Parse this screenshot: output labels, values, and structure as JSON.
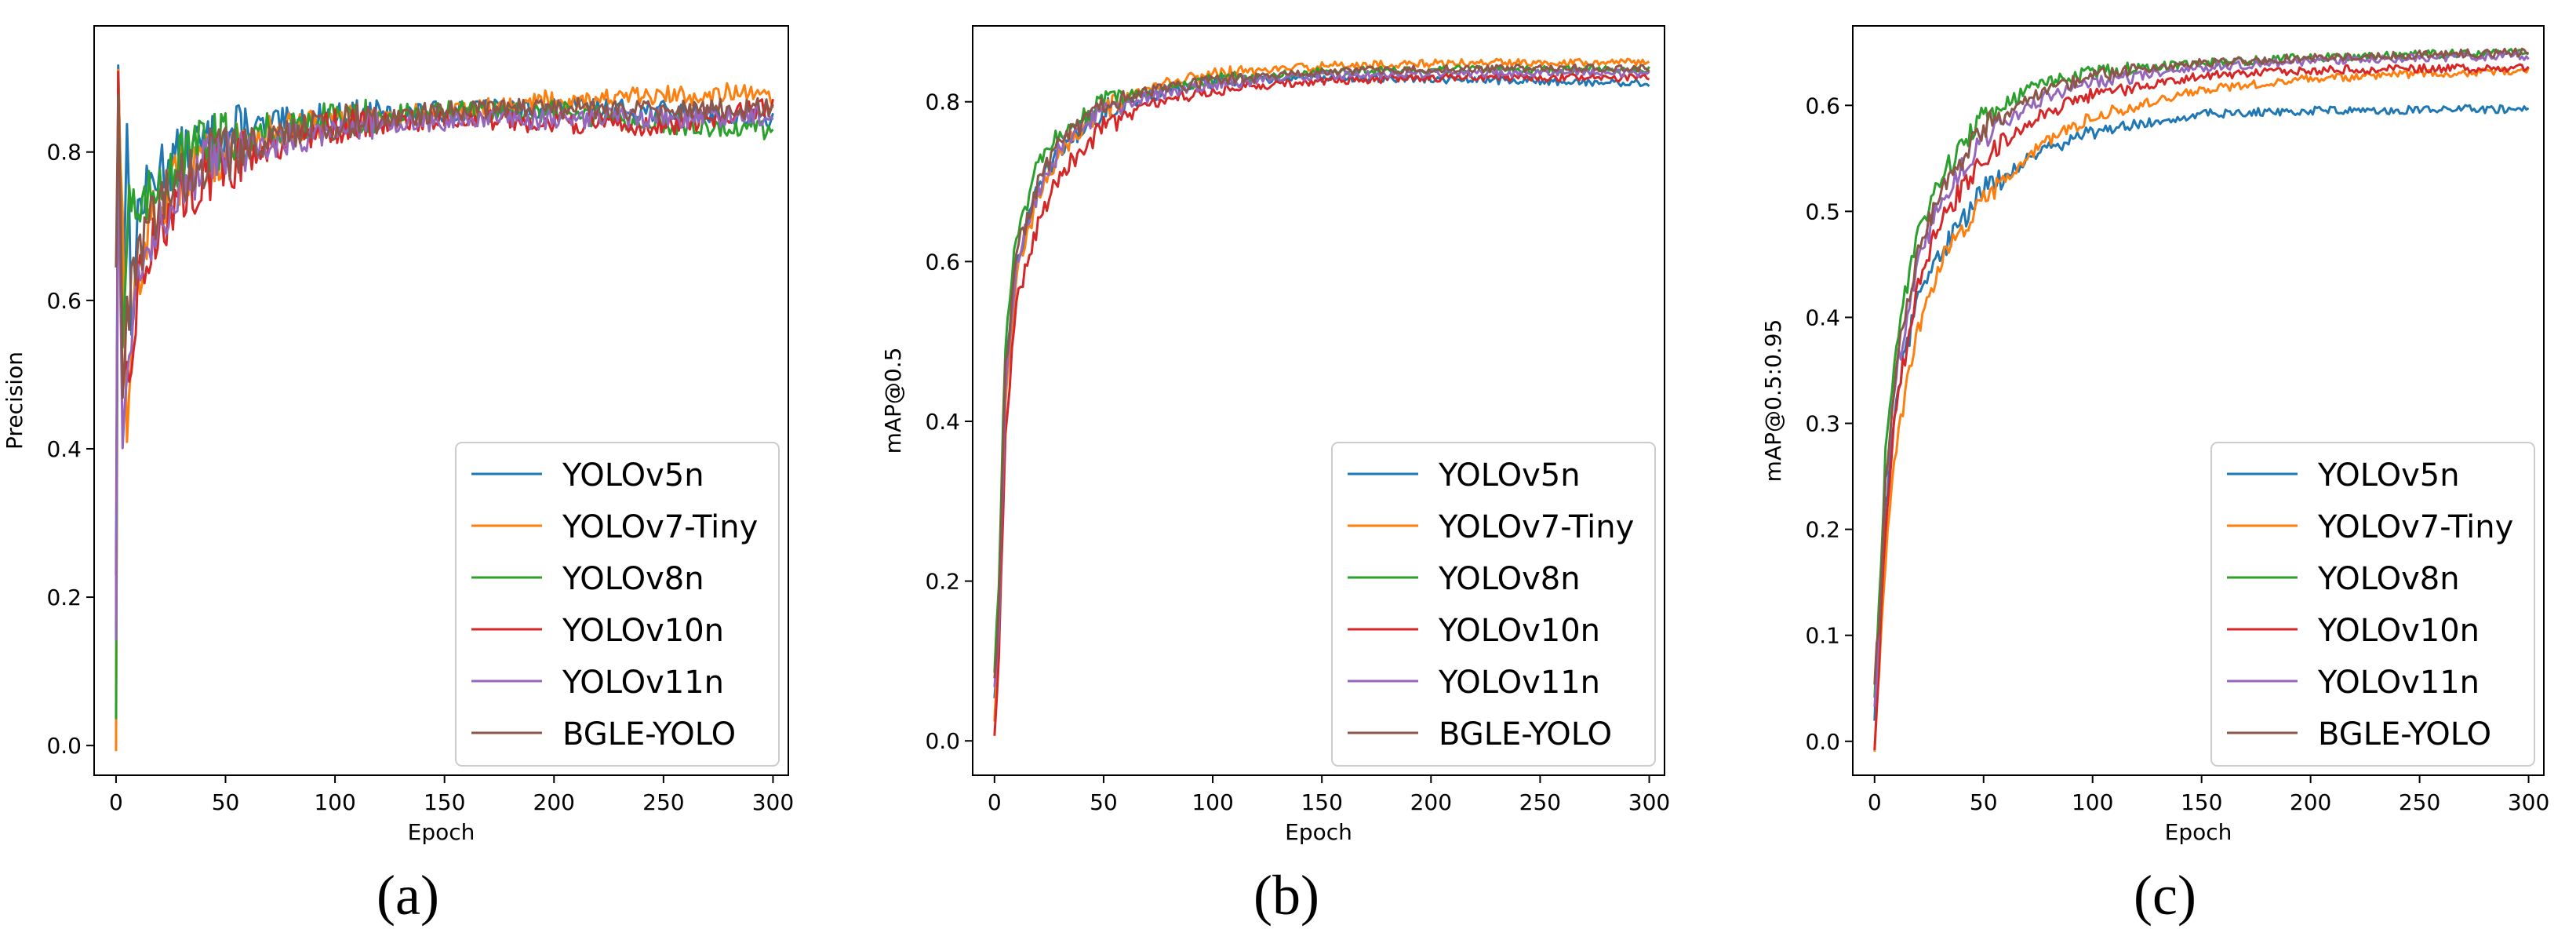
{
  "chart_data": [
    {
      "type": "line",
      "panel_label": "(a)",
      "xlabel": "Epoch",
      "ylabel": "Precision",
      "xlim": [
        -10,
        307
      ],
      "ylim": [
        -0.04,
        0.97
      ],
      "xticks": [
        0,
        50,
        100,
        150,
        200,
        250,
        300
      ],
      "yticks": [
        0.0,
        0.2,
        0.4,
        0.6,
        0.8
      ],
      "ytick_labels": [
        "0.0",
        "0.2",
        "0.4",
        "0.6",
        "0.8"
      ],
      "legend_position": "lower-right",
      "noise": 0.018,
      "series": [
        {
          "name": "YOLOv5n",
          "color": "#1f77b4",
          "anchors": [
            [
              0,
              0.25
            ],
            [
              1,
              0.92
            ],
            [
              3,
              0.6
            ],
            [
              5,
              0.85
            ],
            [
              7,
              0.55
            ],
            [
              10,
              0.72
            ],
            [
              20,
              0.78
            ],
            [
              40,
              0.81
            ],
            [
              60,
              0.83
            ],
            [
              100,
              0.845
            ],
            [
              150,
              0.855
            ],
            [
              200,
              0.86
            ],
            [
              250,
              0.855
            ],
            [
              300,
              0.845
            ]
          ]
        },
        {
          "name": "YOLOv7-Tiny",
          "color": "#ff7f0e",
          "anchors": [
            [
              0,
              0.01
            ],
            [
              1,
              0.93
            ],
            [
              3,
              0.7
            ],
            [
              5,
              0.38
            ],
            [
              8,
              0.6
            ],
            [
              15,
              0.7
            ],
            [
              30,
              0.77
            ],
            [
              60,
              0.82
            ],
            [
              100,
              0.84
            ],
            [
              150,
              0.855
            ],
            [
              200,
              0.87
            ],
            [
              250,
              0.875
            ],
            [
              280,
              0.88
            ],
            [
              300,
              0.87
            ]
          ]
        },
        {
          "name": "YOLOv8n",
          "color": "#2ca02c",
          "anchors": [
            [
              0,
              0.05
            ],
            [
              1,
              0.93
            ],
            [
              3,
              0.55
            ],
            [
              6,
              0.75
            ],
            [
              10,
              0.7
            ],
            [
              20,
              0.77
            ],
            [
              40,
              0.81
            ],
            [
              70,
              0.83
            ],
            [
              100,
              0.845
            ],
            [
              150,
              0.855
            ],
            [
              200,
              0.855
            ],
            [
              240,
              0.84
            ],
            [
              300,
              0.83
            ]
          ]
        },
        {
          "name": "YOLOv10n",
          "color": "#d62728",
          "anchors": [
            [
              0,
              0.17
            ],
            [
              1,
              0.88
            ],
            [
              3,
              0.45
            ],
            [
              6,
              0.5
            ],
            [
              10,
              0.62
            ],
            [
              20,
              0.7
            ],
            [
              40,
              0.77
            ],
            [
              70,
              0.81
            ],
            [
              100,
              0.835
            ],
            [
              150,
              0.845
            ],
            [
              200,
              0.84
            ],
            [
              250,
              0.835
            ],
            [
              300,
              0.86
            ]
          ]
        },
        {
          "name": "YOLOv11n",
          "color": "#9467bd",
          "anchors": [
            [
              0,
              0.15
            ],
            [
              1,
              0.85
            ],
            [
              3,
              0.4
            ],
            [
              6,
              0.55
            ],
            [
              10,
              0.63
            ],
            [
              20,
              0.72
            ],
            [
              40,
              0.78
            ],
            [
              70,
              0.81
            ],
            [
              100,
              0.835
            ],
            [
              150,
              0.84
            ],
            [
              200,
              0.845
            ],
            [
              250,
              0.845
            ],
            [
              300,
              0.85
            ]
          ]
        },
        {
          "name": "BGLE-YOLO",
          "color": "#8c564b",
          "anchors": [
            [
              0,
              0.65
            ],
            [
              1,
              0.88
            ],
            [
              3,
              0.5
            ],
            [
              6,
              0.6
            ],
            [
              10,
              0.66
            ],
            [
              20,
              0.73
            ],
            [
              40,
              0.79
            ],
            [
              70,
              0.82
            ],
            [
              100,
              0.84
            ],
            [
              150,
              0.855
            ],
            [
              200,
              0.86
            ],
            [
              250,
              0.855
            ],
            [
              300,
              0.86
            ]
          ]
        }
      ]
    },
    {
      "type": "line",
      "panel_label": "(b)",
      "xlabel": "Epoch",
      "ylabel": "mAP@0.5",
      "xlim": [
        -10,
        307
      ],
      "ylim": [
        -0.043,
        0.895
      ],
      "xticks": [
        0,
        50,
        100,
        150,
        200,
        250,
        300
      ],
      "yticks": [
        0.0,
        0.2,
        0.4,
        0.6,
        0.8
      ],
      "ytick_labels": [
        "0.0",
        "0.2",
        "0.4",
        "0.6",
        "0.8"
      ],
      "legend_position": "lower-right",
      "noise": 0.006,
      "series": [
        {
          "name": "YOLOv5n",
          "color": "#1f77b4",
          "anchors": [
            [
              0,
              0.05
            ],
            [
              2,
              0.15
            ],
            [
              5,
              0.45
            ],
            [
              10,
              0.6
            ],
            [
              20,
              0.69
            ],
            [
              30,
              0.74
            ],
            [
              50,
              0.79
            ],
            [
              75,
              0.81
            ],
            [
              100,
              0.825
            ],
            [
              150,
              0.83
            ],
            [
              200,
              0.828
            ],
            [
              250,
              0.826
            ],
            [
              300,
              0.823
            ]
          ]
        },
        {
          "name": "YOLOv7-Tiny",
          "color": "#ff7f0e",
          "anchors": [
            [
              0,
              0.02
            ],
            [
              2,
              0.12
            ],
            [
              5,
              0.42
            ],
            [
              10,
              0.58
            ],
            [
              20,
              0.68
            ],
            [
              30,
              0.74
            ],
            [
              50,
              0.79
            ],
            [
              75,
              0.82
            ],
            [
              100,
              0.835
            ],
            [
              150,
              0.845
            ],
            [
              200,
              0.848
            ],
            [
              250,
              0.85
            ],
            [
              300,
              0.85
            ]
          ]
        },
        {
          "name": "YOLOv8n",
          "color": "#2ca02c",
          "anchors": [
            [
              0,
              0.08
            ],
            [
              2,
              0.2
            ],
            [
              5,
              0.5
            ],
            [
              10,
              0.63
            ],
            [
              20,
              0.72
            ],
            [
              30,
              0.76
            ],
            [
              50,
              0.8
            ],
            [
              75,
              0.815
            ],
            [
              100,
              0.828
            ],
            [
              150,
              0.838
            ],
            [
              200,
              0.84
            ],
            [
              250,
              0.84
            ],
            [
              300,
              0.84
            ]
          ]
        },
        {
          "name": "YOLOv10n",
          "color": "#d62728",
          "anchors": [
            [
              0,
              0.0
            ],
            [
              2,
              0.1
            ],
            [
              5,
              0.38
            ],
            [
              10,
              0.55
            ],
            [
              20,
              0.65
            ],
            [
              30,
              0.71
            ],
            [
              50,
              0.77
            ],
            [
              75,
              0.8
            ],
            [
              100,
              0.815
            ],
            [
              150,
              0.826
            ],
            [
              200,
              0.83
            ],
            [
              250,
              0.83
            ],
            [
              300,
              0.83
            ]
          ]
        },
        {
          "name": "YOLOv11n",
          "color": "#9467bd",
          "anchors": [
            [
              0,
              0.06
            ],
            [
              2,
              0.15
            ],
            [
              5,
              0.45
            ],
            [
              10,
              0.6
            ],
            [
              20,
              0.69
            ],
            [
              30,
              0.74
            ],
            [
              50,
              0.79
            ],
            [
              75,
              0.81
            ],
            [
              100,
              0.823
            ],
            [
              150,
              0.833
            ],
            [
              200,
              0.835
            ],
            [
              250,
              0.836
            ],
            [
              300,
              0.836
            ]
          ]
        },
        {
          "name": "BGLE-YOLO",
          "color": "#8c564b",
          "anchors": [
            [
              0,
              0.07
            ],
            [
              2,
              0.17
            ],
            [
              5,
              0.47
            ],
            [
              10,
              0.61
            ],
            [
              20,
              0.7
            ],
            [
              30,
              0.75
            ],
            [
              50,
              0.795
            ],
            [
              75,
              0.815
            ],
            [
              100,
              0.827
            ],
            [
              150,
              0.838
            ],
            [
              200,
              0.841
            ],
            [
              250,
              0.842
            ],
            [
              300,
              0.842
            ]
          ]
        }
      ]
    },
    {
      "type": "line",
      "panel_label": "(c)",
      "xlabel": "Epoch",
      "ylabel": "mAP@0.5:0.95",
      "xlim": [
        -10,
        307
      ],
      "ylim": [
        -0.032,
        0.675
      ],
      "xticks": [
        0,
        50,
        100,
        150,
        200,
        250,
        300
      ],
      "yticks": [
        0.0,
        0.1,
        0.2,
        0.3,
        0.4,
        0.5,
        0.6
      ],
      "ytick_labels": [
        "0.0",
        "0.1",
        "0.2",
        "0.3",
        "0.4",
        "0.5",
        "0.6"
      ],
      "legend_position": "lower-right",
      "noise": 0.005,
      "series": [
        {
          "name": "YOLOv5n",
          "color": "#1f77b4",
          "anchors": [
            [
              0,
              0.03
            ],
            [
              2,
              0.1
            ],
            [
              5,
              0.22
            ],
            [
              10,
              0.33
            ],
            [
              20,
              0.42
            ],
            [
              30,
              0.46
            ],
            [
              50,
              0.52
            ],
            [
              75,
              0.555
            ],
            [
              100,
              0.575
            ],
            [
              150,
              0.592
            ],
            [
              200,
              0.595
            ],
            [
              250,
              0.596
            ],
            [
              300,
              0.597
            ]
          ]
        },
        {
          "name": "YOLOv7-Tiny",
          "color": "#ff7f0e",
          "anchors": [
            [
              0,
              0.0
            ],
            [
              2,
              0.06
            ],
            [
              5,
              0.17
            ],
            [
              10,
              0.28
            ],
            [
              20,
              0.39
            ],
            [
              30,
              0.45
            ],
            [
              50,
              0.51
            ],
            [
              75,
              0.56
            ],
            [
              100,
              0.59
            ],
            [
              150,
              0.615
            ],
            [
              200,
              0.625
            ],
            [
              250,
              0.63
            ],
            [
              300,
              0.632
            ]
          ]
        },
        {
          "name": "YOLOv8n",
          "color": "#2ca02c",
          "anchors": [
            [
              0,
              0.05
            ],
            [
              2,
              0.12
            ],
            [
              5,
              0.27
            ],
            [
              10,
              0.38
            ],
            [
              20,
              0.48
            ],
            [
              30,
              0.53
            ],
            [
              50,
              0.59
            ],
            [
              75,
              0.62
            ],
            [
              100,
              0.632
            ],
            [
              150,
              0.64
            ],
            [
              200,
              0.645
            ],
            [
              250,
              0.648
            ],
            [
              300,
              0.65
            ]
          ]
        },
        {
          "name": "YOLOv10n",
          "color": "#d62728",
          "anchors": [
            [
              0,
              0.0
            ],
            [
              2,
              0.07
            ],
            [
              5,
              0.2
            ],
            [
              10,
              0.32
            ],
            [
              20,
              0.43
            ],
            [
              30,
              0.49
            ],
            [
              50,
              0.55
            ],
            [
              75,
              0.59
            ],
            [
              100,
              0.61
            ],
            [
              150,
              0.628
            ],
            [
              200,
              0.633
            ],
            [
              250,
              0.635
            ],
            [
              300,
              0.635
            ]
          ]
        },
        {
          "name": "YOLOv11n",
          "color": "#9467bd",
          "anchors": [
            [
              0,
              0.04
            ],
            [
              2,
              0.1
            ],
            [
              5,
              0.24
            ],
            [
              10,
              0.35
            ],
            [
              20,
              0.45
            ],
            [
              30,
              0.51
            ],
            [
              50,
              0.57
            ],
            [
              75,
              0.605
            ],
            [
              100,
              0.622
            ],
            [
              150,
              0.636
            ],
            [
              200,
              0.642
            ],
            [
              250,
              0.645
            ],
            [
              300,
              0.647
            ]
          ]
        },
        {
          "name": "BGLE-YOLO",
          "color": "#8c564b",
          "anchors": [
            [
              0,
              0.06
            ],
            [
              2,
              0.11
            ],
            [
              5,
              0.25
            ],
            [
              10,
              0.36
            ],
            [
              20,
              0.46
            ],
            [
              30,
              0.52
            ],
            [
              50,
              0.58
            ],
            [
              75,
              0.612
            ],
            [
              100,
              0.628
            ],
            [
              150,
              0.64
            ],
            [
              200,
              0.645
            ],
            [
              250,
              0.648
            ],
            [
              300,
              0.65
            ]
          ]
        }
      ]
    }
  ]
}
